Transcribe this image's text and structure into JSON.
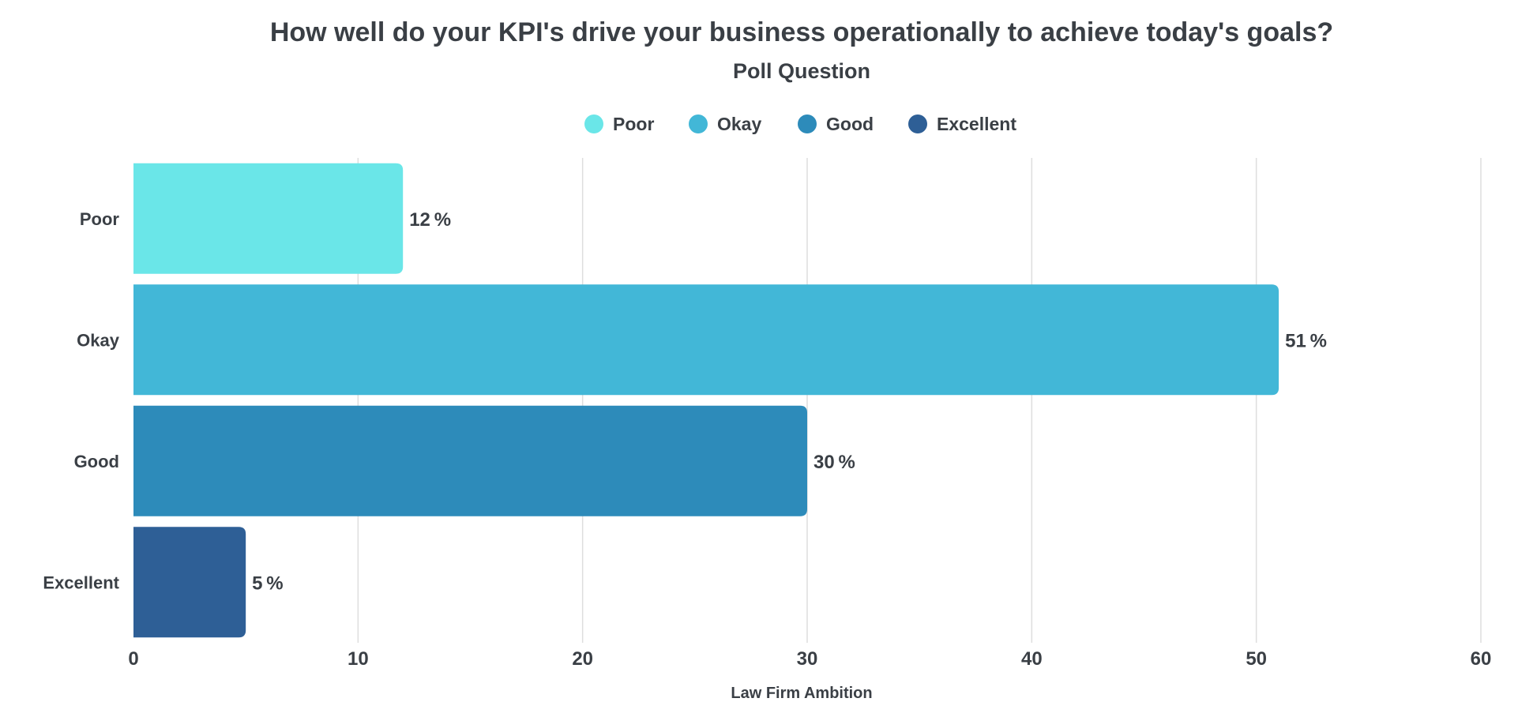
{
  "chart_data": {
    "type": "bar",
    "orientation": "horizontal",
    "title": "How well do your KPI's drive your business operationally to achieve today's goals?",
    "subtitle": "Poll Question",
    "xlabel": "Law Firm Ambition",
    "ylabel": "",
    "categories": [
      "Poor",
      "Okay",
      "Good",
      "Excellent"
    ],
    "values": [
      12,
      51,
      30,
      5
    ],
    "value_suffix": "%",
    "colors": [
      "#6ae6e8",
      "#42b7d7",
      "#2d8bba",
      "#2e5f96"
    ],
    "legend": {
      "position": "top-center",
      "entries": [
        "Poor",
        "Okay",
        "Good",
        "Excellent"
      ]
    },
    "xlim": [
      0,
      60
    ],
    "xticks": [
      0,
      10,
      20,
      30,
      40,
      50,
      60
    ],
    "grid": true
  }
}
